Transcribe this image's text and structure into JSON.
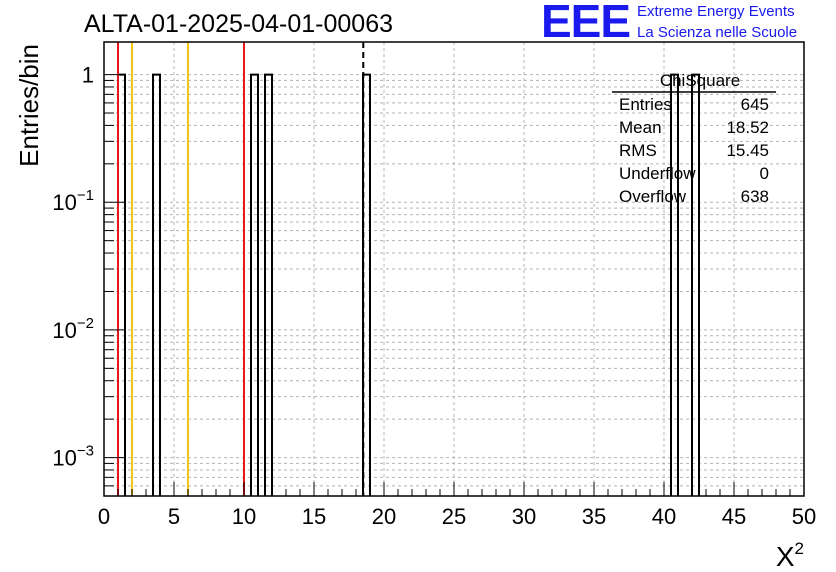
{
  "header": {
    "run_title": "ALTA-01-2025-04-01-00063",
    "logo_mark": "EEE",
    "logo_line1": "Extreme Energy Events",
    "logo_line2": "La Scienza nelle Scuole",
    "logo_color": "#1a1aee"
  },
  "chart_data": {
    "type": "bar",
    "title": "ALTA-01-2025-04-01-00063",
    "xlabel": "X",
    "xlabel_superscript": "2",
    "ylabel": "Entries/bin",
    "xlim": [
      0,
      50
    ],
    "ylog": true,
    "ylim": [
      0.0005,
      1.8
    ],
    "grid": true,
    "x_ticks": [
      0,
      5,
      10,
      15,
      20,
      25,
      30,
      35,
      40,
      45,
      50
    ],
    "y_ticks": [
      {
        "value": 1,
        "base": "1",
        "exp": ""
      },
      {
        "value": 0.1,
        "base": "10",
        "exp": "−1"
      },
      {
        "value": 0.01,
        "base": "10",
        "exp": "−2"
      },
      {
        "value": 0.001,
        "base": "10",
        "exp": "−3"
      }
    ],
    "bin_width": 0.5,
    "bins": [
      {
        "x0": 1.0,
        "x1": 1.5,
        "value": 1
      },
      {
        "x0": 3.5,
        "x1": 4.0,
        "value": 1
      },
      {
        "x0": 10.5,
        "x1": 11.0,
        "value": 1
      },
      {
        "x0": 11.5,
        "x1": 12.0,
        "value": 1
      },
      {
        "x0": 18.5,
        "x1": 19.0,
        "value": 1
      },
      {
        "x0": 40.5,
        "x1": 41.0,
        "value": 1
      },
      {
        "x0": 42.0,
        "x1": 42.5,
        "value": 1
      }
    ],
    "reference_lines": [
      {
        "x": 1.0,
        "color": "#e8171c",
        "style": "solid"
      },
      {
        "x": 2.0,
        "color": "#f5c518",
        "style": "solid"
      },
      {
        "x": 6.0,
        "color": "#f5c518",
        "style": "solid"
      },
      {
        "x": 10.0,
        "color": "#e8171c",
        "style": "solid"
      },
      {
        "x": 18.52,
        "color": "#000000",
        "style": "dashed"
      }
    ],
    "stats_box": {
      "name": "ChiSquare",
      "rows": [
        {
          "label": "Entries",
          "value": "645"
        },
        {
          "label": "Mean",
          "value": "18.52"
        },
        {
          "label": "RMS",
          "value": "15.45"
        },
        {
          "label": "Underflow",
          "value": "0"
        },
        {
          "label": "Overflow",
          "value": "638"
        }
      ]
    }
  }
}
